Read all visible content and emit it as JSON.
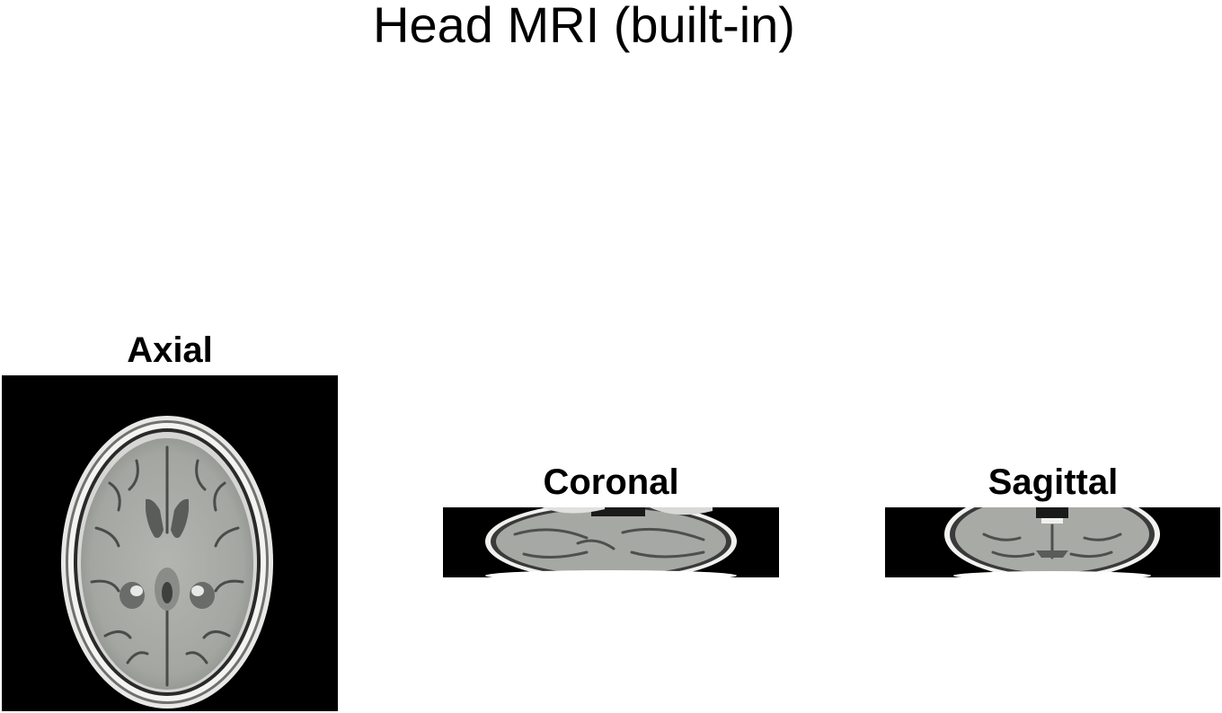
{
  "figure": {
    "title": "Head MRI (built-in)"
  },
  "panels": [
    {
      "title": "Axial",
      "view": "axial-slice-image"
    },
    {
      "title": "Coronal",
      "view": "coronal-slice-image"
    },
    {
      "title": "Sagittal",
      "view": "sagittal-slice-image"
    }
  ],
  "colors": {
    "background": "#ffffff",
    "image_background": "#000000",
    "tissue_gray": "#a8aaa6",
    "skull_white": "#f2f2f2",
    "ventricle_dark": "#5e605d"
  }
}
